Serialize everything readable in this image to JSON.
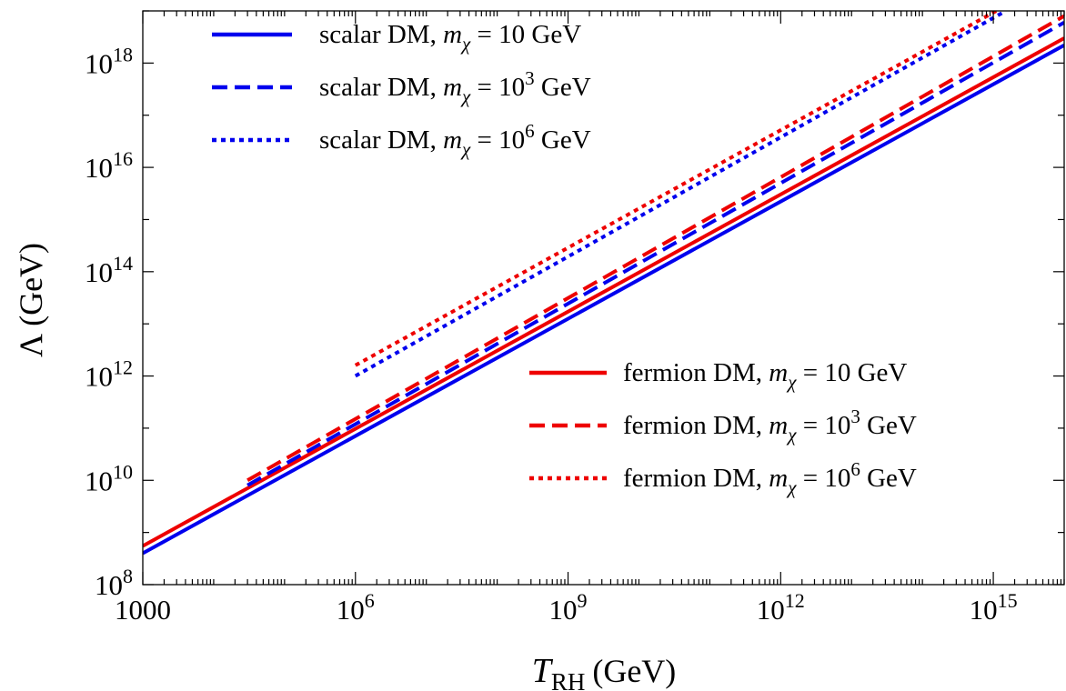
{
  "chart_data": {
    "type": "line",
    "title": "",
    "xlabel": {
      "symbol": "T",
      "subscript": "RH",
      "unit": "(GeV)"
    },
    "ylabel": {
      "symbol": "Λ",
      "unit": "(GeV)"
    },
    "x_scale": "log",
    "y_scale": "log",
    "xlim": [
      1000,
      1e+16
    ],
    "ylim": [
      100000000.0,
      1e+19
    ],
    "grid": false,
    "x_ticks": [
      {
        "value": 1000,
        "mantissa": "1000",
        "exp": ""
      },
      {
        "value": 1000000.0,
        "mantissa": "10",
        "exp": "6"
      },
      {
        "value": 1000000000.0,
        "mantissa": "10",
        "exp": "9"
      },
      {
        "value": 1000000000000.0,
        "mantissa": "10",
        "exp": "12"
      },
      {
        "value": 1000000000000000.0,
        "mantissa": "10",
        "exp": "15"
      }
    ],
    "y_ticks": [
      {
        "value": 100000000.0,
        "mantissa": "10",
        "exp": "8"
      },
      {
        "value": 10000000000.0,
        "mantissa": "10",
        "exp": "10"
      },
      {
        "value": 1000000000000.0,
        "mantissa": "10",
        "exp": "12"
      },
      {
        "value": 100000000000000.0,
        "mantissa": "10",
        "exp": "14"
      },
      {
        "value": 1e+16,
        "mantissa": "10",
        "exp": "16"
      },
      {
        "value": 1e+18,
        "mantissa": "10",
        "exp": "18"
      }
    ],
    "legends": [
      {
        "position": "top-left",
        "entries": [
          {
            "prefix": "scalar DM, ",
            "var": "m",
            "sub": "χ",
            "eq": " = 10",
            "sup": "",
            "unit": " GeV",
            "color": "#0000ee",
            "dash": "solid"
          },
          {
            "prefix": "scalar DM, ",
            "var": "m",
            "sub": "χ",
            "eq": " = 10",
            "sup": "3",
            "unit": " GeV",
            "color": "#0000ee",
            "dash": "dashed"
          },
          {
            "prefix": "scalar DM, ",
            "var": "m",
            "sub": "χ",
            "eq": " = 10",
            "sup": "6",
            "unit": " GeV",
            "color": "#0000ee",
            "dash": "dotted"
          }
        ]
      },
      {
        "position": "bottom-right",
        "entries": [
          {
            "prefix": "fermion DM, ",
            "var": "m",
            "sub": "χ",
            "eq": " = 10",
            "sup": "",
            "unit": " GeV",
            "color": "#ee0000",
            "dash": "solid"
          },
          {
            "prefix": "fermion DM, ",
            "var": "m",
            "sub": "χ",
            "eq": " = 10",
            "sup": "3",
            "unit": " GeV",
            "color": "#ee0000",
            "dash": "dashed"
          },
          {
            "prefix": "fermion DM, ",
            "var": "m",
            "sub": "χ",
            "eq": " = 10",
            "sup": "6",
            "unit": " GeV",
            "color": "#ee0000",
            "dash": "dotted"
          }
        ]
      }
    ],
    "series": [
      {
        "name": "scalar DM, mχ = 10 GeV",
        "color": "#0000ee",
        "dash": "solid",
        "x": [
          1000,
          1e+16
        ],
        "y": [
          400000000.0,
          2.2e+18
        ]
      },
      {
        "name": "fermion DM, mχ = 10 GeV",
        "color": "#ee0000",
        "dash": "solid",
        "x": [
          1000,
          1e+16
        ],
        "y": [
          550000000.0,
          3e+18
        ]
      },
      {
        "name": "scalar DM, mχ = 10^3 GeV",
        "color": "#0000ee",
        "dash": "dashed",
        "x": [
          30000,
          1e+16
        ],
        "y": [
          8000000000.0,
          6e+18
        ]
      },
      {
        "name": "fermion DM, mχ = 10^3 GeV",
        "color": "#ee0000",
        "dash": "dashed",
        "x": [
          30000,
          1e+16
        ],
        "y": [
          10000000000.0,
          8e+18
        ]
      },
      {
        "name": "scalar DM, mχ = 10^6 GeV",
        "color": "#0000ee",
        "dash": "dotted",
        "x": [
          1000000.0,
          1500000000000000.0
        ],
        "y": [
          1000000000000.0,
          1e+19
        ]
      },
      {
        "name": "fermion DM, mχ = 10^6 GeV",
        "color": "#ee0000",
        "dash": "dotted",
        "x": [
          1000000.0,
          1100000000000000.0
        ],
        "y": [
          1600000000000.0,
          1e+19
        ]
      }
    ]
  }
}
